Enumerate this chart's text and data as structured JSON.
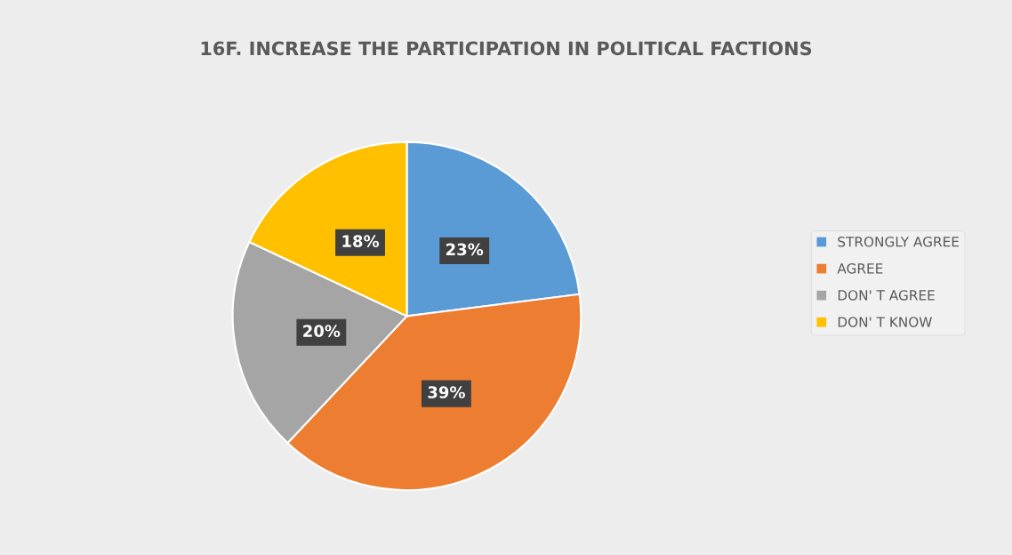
{
  "chart_data": {
    "type": "pie",
    "title": "16F. INCREASE THE PARTICIPATION IN POLITICAL FACTIONS",
    "categories": [
      "STRONGLY AGREE",
      "AGREE",
      "DON' T AGREE",
      "DON' T KNOW"
    ],
    "values": [
      23,
      39,
      20,
      18
    ],
    "colors": [
      "#5b9bd5",
      "#ed7d31",
      "#a5a5a5",
      "#ffc000"
    ],
    "value_labels": [
      "23%",
      "39%",
      "20%",
      "18%"
    ],
    "legend": "right"
  }
}
